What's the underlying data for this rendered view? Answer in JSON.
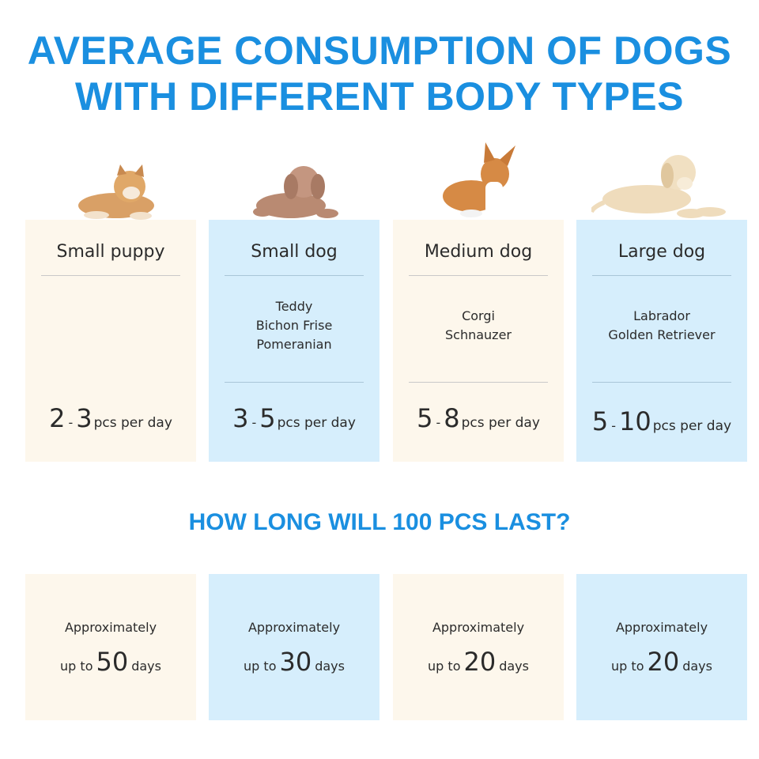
{
  "title": {
    "line1": "AVERAGE CONSUMPTION OF DOGS",
    "line2": "WITH DIFFERENT BODY TYPES"
  },
  "subtitle": "HOW LONG WILL 100 PCS LAST?",
  "colors": {
    "accent": "#1a8fe0",
    "cream": "#fdf7ec",
    "blue": "#d6eefc",
    "text": "#2b2b2b"
  },
  "categories": [
    {
      "name": "Small puppy",
      "breeds": [],
      "min": "2",
      "dash": "-",
      "max": "3",
      "unit": "pcs per day",
      "image": "shiba-puppy-photo"
    },
    {
      "name": "Small dog",
      "breeds": [
        "Teddy",
        "Bichon Frise",
        "Pomeranian"
      ],
      "min": "3",
      "dash": "-",
      "max": "5",
      "unit": "pcs per day",
      "image": "poodle-photo"
    },
    {
      "name": "Medium dog",
      "breeds": [
        "Corgi",
        "Schnauzer"
      ],
      "min": "5",
      "dash": "-",
      "max": "8",
      "unit": "pcs per day",
      "image": "corgi-photo"
    },
    {
      "name": "Large dog",
      "breeds": [
        "Labrador",
        "Golden Retriever"
      ],
      "min": "5",
      "dash": "-",
      "max": "10",
      "unit": "pcs per day",
      "image": "labrador-photo"
    }
  ],
  "duration": [
    {
      "approx": "Approximately",
      "prefix": "up to",
      "value": "50",
      "unit": "days"
    },
    {
      "approx": "Approximately",
      "prefix": "up to",
      "value": "30",
      "unit": "days"
    },
    {
      "approx": "Approximately",
      "prefix": "up to",
      "value": "20",
      "unit": "days"
    },
    {
      "approx": "Approximately",
      "prefix": "up to",
      "value": "20",
      "unit": "days"
    }
  ]
}
